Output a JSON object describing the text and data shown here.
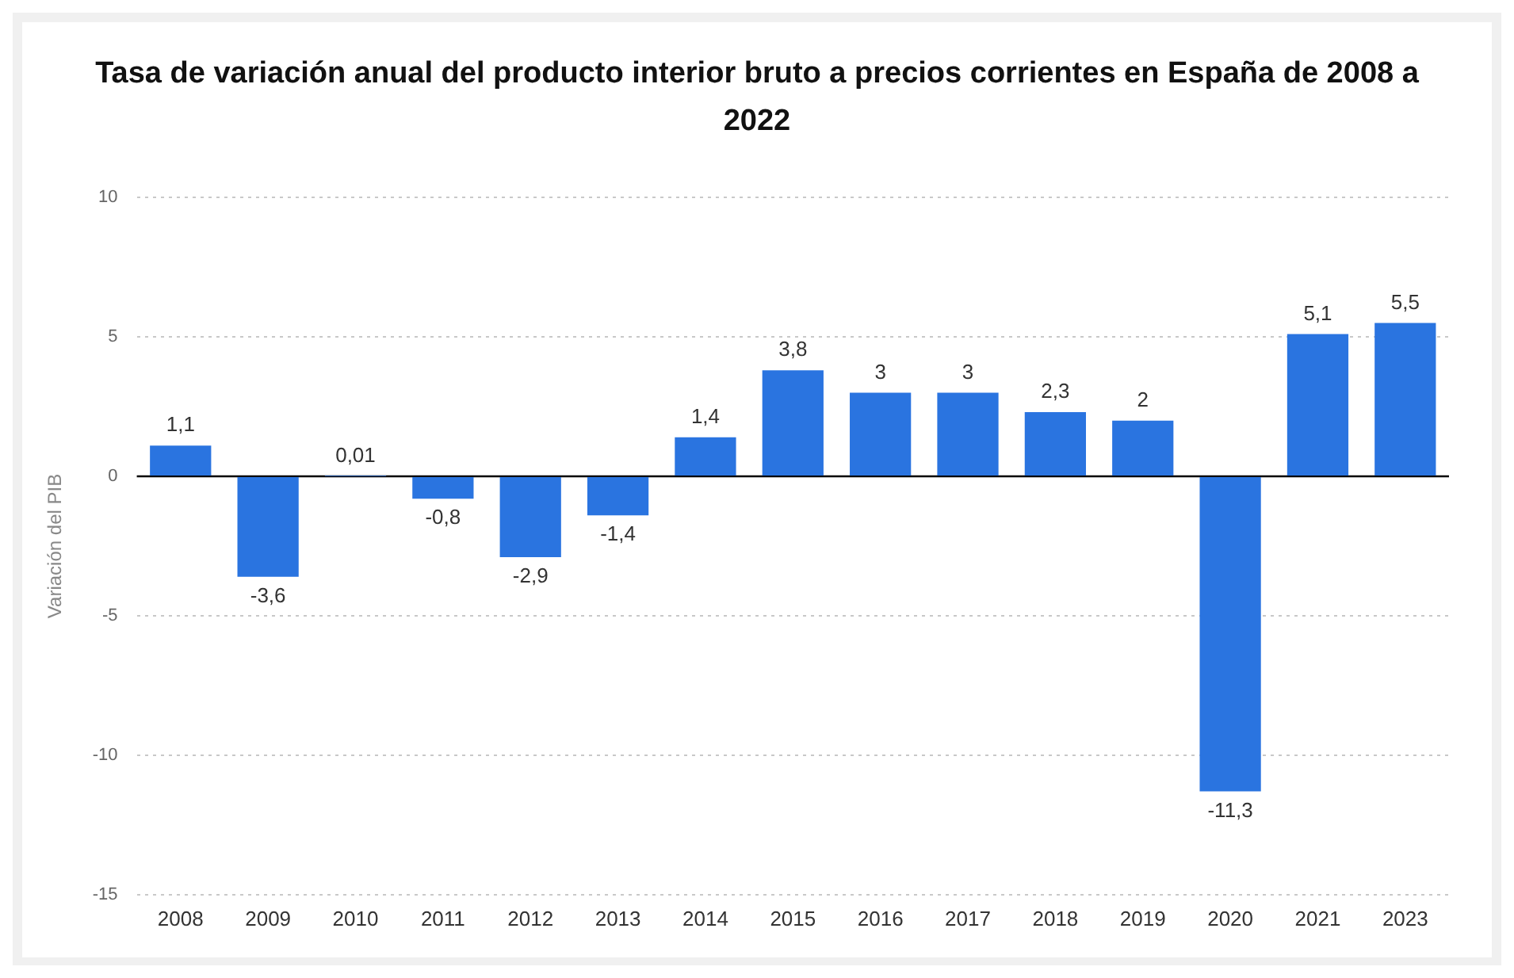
{
  "chart_data": {
    "type": "bar",
    "title": "Tasa de variación anual del producto interior bruto a precios corrientes en España de 2008 a 2022",
    "ylabel": "Variación del PIB",
    "categories": [
      "2008",
      "2009",
      "2010",
      "2011",
      "2012",
      "2013",
      "2014",
      "2015",
      "2016",
      "2017",
      "2018",
      "2019",
      "2020",
      "2021",
      "2023"
    ],
    "values": [
      1.1,
      -3.6,
      0.01,
      -0.8,
      -2.9,
      -1.4,
      1.4,
      3.8,
      3,
      3,
      2.3,
      2,
      -11.3,
      5.1,
      5.5
    ],
    "value_labels": [
      "1,1",
      "-3,6",
      "0,01",
      "-0,8",
      "-2,9",
      "-1,4",
      "1,4",
      "3,8",
      "3",
      "3",
      "2,3",
      "2",
      "-11,3",
      "5,1",
      "5,5"
    ],
    "color": "#2a74e0",
    "ylim": [
      -15,
      10
    ],
    "yticks": [
      -15,
      -10,
      -5,
      0,
      5,
      10
    ],
    "grid": "y",
    "legend": false,
    "ref_lines": [
      {
        "axis": "y",
        "value": 0,
        "color": "#000000"
      }
    ]
  }
}
